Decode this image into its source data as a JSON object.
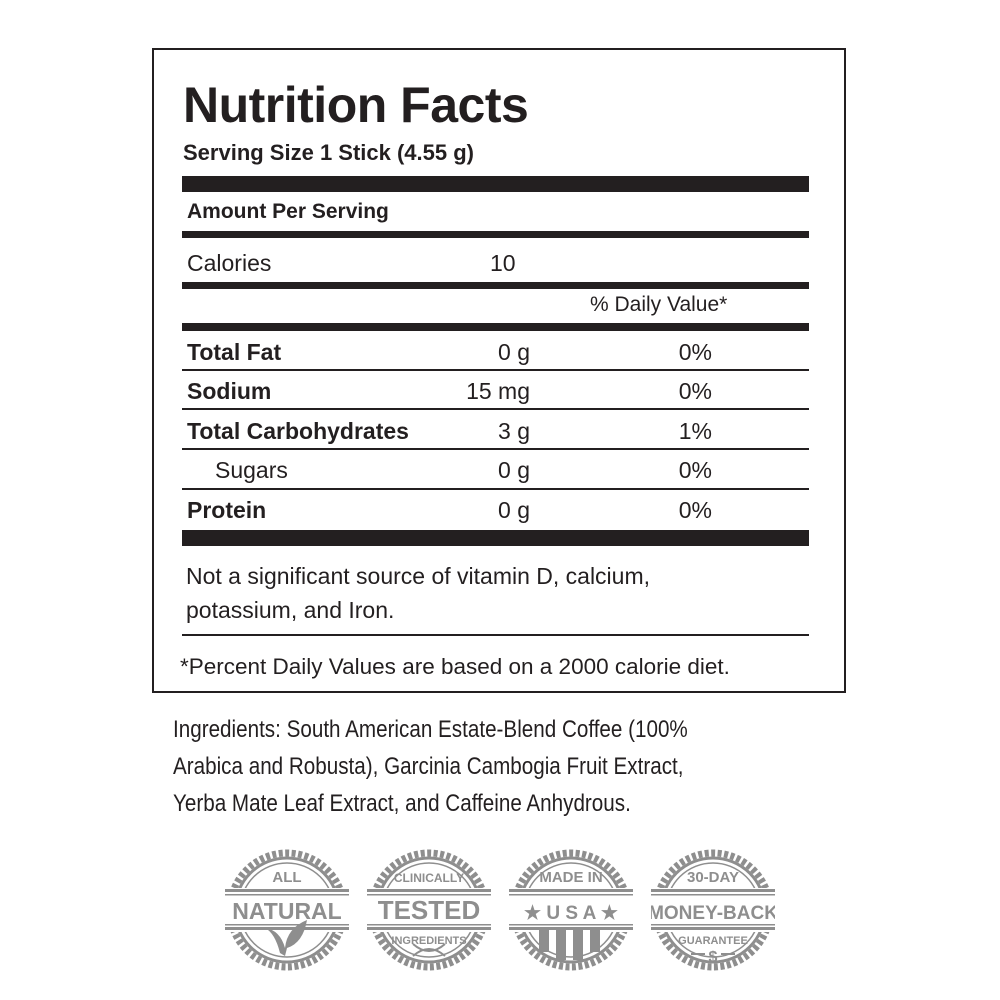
{
  "label": {
    "title": "Nutrition Facts",
    "serving_size": "Serving Size  1 Stick (4.55 g)",
    "amount_per_serving": "Amount Per Serving",
    "calories_label": "Calories",
    "calories_value": "10",
    "daily_value_header": "% Daily Value*",
    "rows": [
      {
        "name": "Total Fat",
        "amount": "0 g",
        "dv": "0%"
      },
      {
        "name": "Sodium",
        "amount": "15 mg",
        "dv": "0%"
      },
      {
        "name": "Total Carbohydrates",
        "amount": "3 g",
        "dv": "1%"
      },
      {
        "name": "Sugars",
        "amount": "0 g",
        "dv": "0%"
      },
      {
        "name": "Protein",
        "amount": "0 g",
        "dv": "0%"
      }
    ],
    "note_line1": "Not a significant source of vitamin D, calcium,",
    "note_line2": "potassium, and Iron.",
    "footnote": "*Percent Daily Values are based on a 2000 calorie diet."
  },
  "ingredients": {
    "line1": "Ingredients: South American Estate-Blend Coffee (100%",
    "line2": "Arabica and Robusta), Garcinia Cambogia Fruit Extract,",
    "line3": "Yerba Mate Leaf Extract, and Caffeine Anhydrous."
  },
  "badges": [
    {
      "top": "ALL",
      "main": "NATURAL",
      "icon": "leaf-icon"
    },
    {
      "top": "CLINICALLY",
      "main": "TESTED",
      "bottom": "INGREDIENTS",
      "icon": "dna-icon"
    },
    {
      "top": "MADE IN",
      "main": "★ U S A ★",
      "icon": "flag-stripes-icon"
    },
    {
      "top": "30-DAY",
      "main": "MONEY-BACK",
      "bottom": "GUARANTEE",
      "icon": "dollar-icon"
    }
  ],
  "colors": {
    "ink": "#231f20",
    "badge_gray": "#8e8e8e"
  }
}
